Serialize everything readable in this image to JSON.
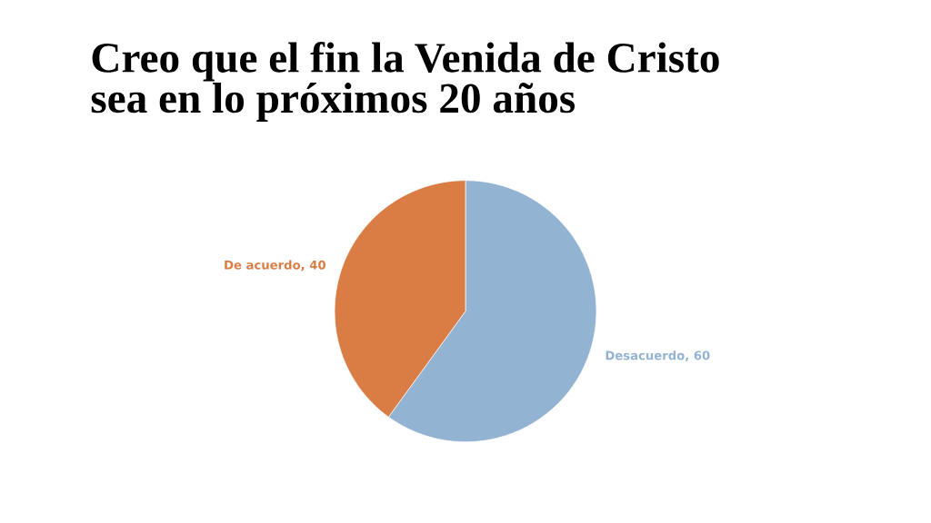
{
  "chart_data": {
    "type": "pie",
    "title": "Creo que el fin la Venida de Cristo\nsea en lo próximos 20 años",
    "categories": [
      "Desacuerdo",
      "De acuerdo"
    ],
    "values": [
      60,
      40
    ],
    "colors": [
      "#93b3d2",
      "#d97d45"
    ],
    "value_labels": [
      ", 60",
      ", 40"
    ]
  }
}
